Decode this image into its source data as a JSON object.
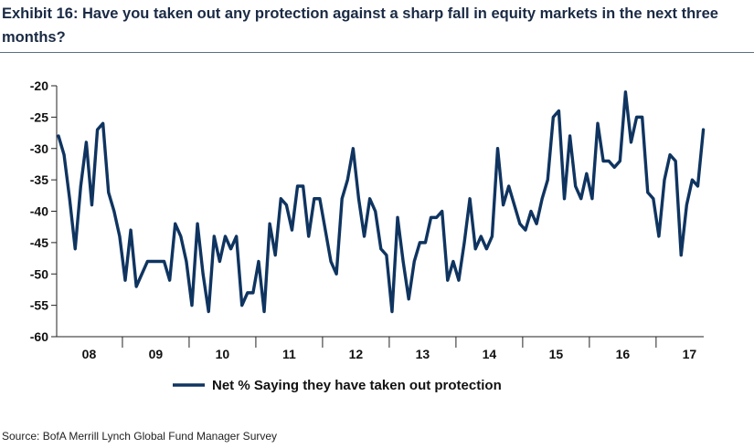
{
  "title": "Exhibit 16: Have you taken out any protection against a sharp fall in equity markets in the next three months?",
  "source": "Source: BofA Merrill Lynch Global Fund Manager Survey",
  "colors": {
    "line": "#0f3460",
    "axis": "#222222",
    "title": "#1a2a44"
  },
  "chart_data": {
    "type": "line",
    "title": "Exhibit 16: Have you taken out any protection against a sharp fall in equity markets in the next three months?",
    "xlabel": "",
    "ylabel": "",
    "ylim": [
      -60,
      -20
    ],
    "yticks": [
      "-20",
      "-25",
      "-30",
      "-35",
      "-40",
      "-45",
      "-50",
      "-55",
      "-60"
    ],
    "ytick_values": [
      -20,
      -25,
      -30,
      -35,
      -40,
      -45,
      -50,
      -55,
      -60
    ],
    "xticks": [
      "08",
      "09",
      "10",
      "11",
      "12",
      "13",
      "14",
      "15",
      "16",
      "17"
    ],
    "grid": false,
    "legend_position": "bottom",
    "series": [
      {
        "name": "Net % Saying they have taken out protection",
        "start": "2008-01",
        "frequency": "monthly",
        "values": [
          -28,
          -31,
          -38,
          -46,
          -36,
          -29,
          -39,
          -27,
          -26,
          -37,
          -40,
          -44,
          -51,
          -43,
          -52,
          -50,
          -48,
          -48,
          -48,
          -48,
          -51,
          -42,
          -44,
          -48,
          -55,
          -42,
          -50,
          -56,
          -44,
          -48,
          -44,
          -46,
          -44,
          -55,
          -53,
          -53,
          -48,
          -56,
          -42,
          -47,
          -38,
          -39,
          -43,
          -36,
          -36,
          -44,
          -38,
          -38,
          -43,
          -48,
          -50,
          -38,
          -35,
          -30,
          -38,
          -44,
          -38,
          -40,
          -46,
          -47,
          -56,
          -41,
          -48,
          -54,
          -48,
          -45,
          -45,
          -41,
          -41,
          -40,
          -51,
          -48,
          -51,
          -45,
          -38,
          -46,
          -44,
          -46,
          -44,
          -30,
          -39,
          -36,
          -39,
          -42,
          -43,
          -40,
          -42,
          -38,
          -35,
          -25,
          -24,
          -38,
          -28,
          -36,
          -38,
          -34,
          -38,
          -26,
          -32,
          -32,
          -33,
          -32,
          -21,
          -29,
          -25,
          -25,
          -37,
          -38,
          -44,
          -35,
          -31,
          -32,
          -47,
          -39,
          -35,
          -36,
          -27
        ]
      }
    ]
  }
}
